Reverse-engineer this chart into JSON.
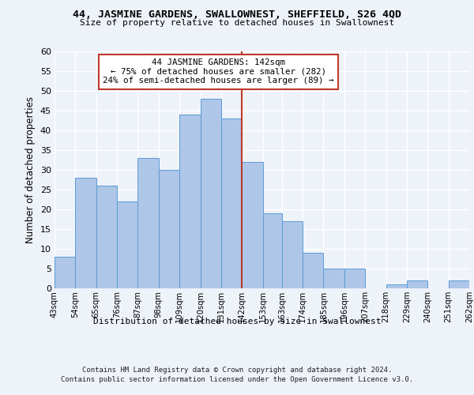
{
  "title1": "44, JASMINE GARDENS, SWALLOWNEST, SHEFFIELD, S26 4QD",
  "title2": "Size of property relative to detached houses in Swallownest",
  "xlabel": "Distribution of detached houses by size in Swallownest",
  "ylabel": "Number of detached properties",
  "footer1": "Contains HM Land Registry data © Crown copyright and database right 2024.",
  "footer2": "Contains public sector information licensed under the Open Government Licence v3.0.",
  "annotation_title": "44 JASMINE GARDENS: 142sqm",
  "annotation_line1": "← 75% of detached houses are smaller (282)",
  "annotation_line2": "24% of semi-detached houses are larger (89) →",
  "property_size": 142,
  "bin_edges": [
    43,
    54,
    65,
    76,
    87,
    98,
    109,
    120,
    131,
    142,
    153,
    163,
    174,
    185,
    196,
    207,
    218,
    229,
    240,
    251,
    262
  ],
  "bar_heights": [
    8,
    28,
    26,
    22,
    33,
    30,
    44,
    48,
    43,
    32,
    19,
    17,
    9,
    5,
    5,
    0,
    1,
    2,
    0,
    2
  ],
  "bar_color": "#aec6e8",
  "bar_edge_color": "#5b9bd5",
  "vline_color": "#c0392b",
  "annotation_box_color": "#ffffff",
  "annotation_box_edge_color": "#c0392b",
  "background_color": "#eef2f9",
  "grid_color": "#ffffff",
  "ylim": [
    0,
    60
  ],
  "yticks": [
    0,
    5,
    10,
    15,
    20,
    25,
    30,
    35,
    40,
    45,
    50,
    55,
    60
  ]
}
